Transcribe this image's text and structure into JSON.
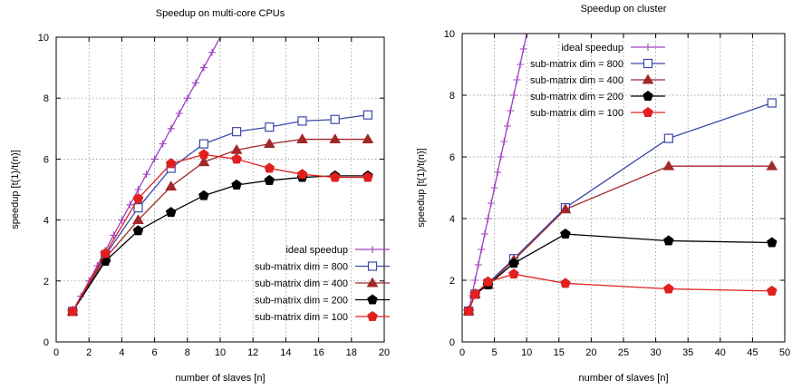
{
  "chart_data": [
    {
      "type": "line",
      "title": "Speedup on multi-core CPUs",
      "xlabel": "number of slaves [n]",
      "ylabel": "speedup [t(1)/t(n)]",
      "xlim": [
        0,
        20
      ],
      "ylim": [
        0,
        10
      ],
      "xticks": [
        0,
        2,
        4,
        6,
        8,
        10,
        12,
        14,
        16,
        18,
        20
      ],
      "yticks": [
        0,
        2,
        4,
        6,
        8,
        10
      ],
      "grid": true,
      "legend_position": "bottom-right",
      "series": [
        {
          "name": "ideal speedup",
          "color": "#a040c0",
          "marker": "plus",
          "x": [
            1,
            1.5,
            2,
            2.5,
            3,
            3.5,
            4,
            4.5,
            5,
            5.5,
            6,
            6.5,
            7,
            7.5,
            8,
            8.5,
            9,
            9.5,
            10
          ],
          "y": [
            1,
            1.5,
            2,
            2.5,
            3,
            3.5,
            4,
            4.5,
            5,
            5.5,
            6,
            6.5,
            7,
            7.5,
            8,
            8.5,
            9,
            9.5,
            10
          ]
        },
        {
          "name": "sub-matrix dim = 800",
          "color": "#3a4aa8",
          "marker": "square",
          "x": [
            1,
            3,
            5,
            7,
            9,
            11,
            13,
            15,
            17,
            19
          ],
          "y": [
            1.0,
            2.85,
            4.4,
            5.7,
            6.5,
            6.9,
            7.05,
            7.25,
            7.3,
            7.45
          ]
        },
        {
          "name": "sub-matrix dim = 400",
          "color": "#a02828",
          "marker": "triangle",
          "x": [
            1,
            3,
            5,
            7,
            9,
            11,
            13,
            15,
            17,
            19
          ],
          "y": [
            1.0,
            2.75,
            4.0,
            5.1,
            5.9,
            6.3,
            6.5,
            6.65,
            6.65,
            6.65
          ]
        },
        {
          "name": "sub-matrix dim = 200",
          "color": "#000000",
          "marker": "pentagon",
          "x": [
            1,
            3,
            5,
            7,
            9,
            11,
            13,
            15,
            17,
            19
          ],
          "y": [
            1.0,
            2.65,
            3.65,
            4.25,
            4.8,
            5.15,
            5.3,
            5.4,
            5.45,
            5.45
          ]
        },
        {
          "name": "sub-matrix dim = 100",
          "color": "#e02020",
          "marker": "pentagon",
          "x": [
            1,
            3,
            5,
            7,
            9,
            11,
            13,
            15,
            17,
            19
          ],
          "y": [
            1.0,
            2.9,
            4.7,
            5.85,
            6.15,
            6.0,
            5.7,
            5.5,
            5.4,
            5.4
          ]
        }
      ]
    },
    {
      "type": "line",
      "title": "Speedup on cluster",
      "xlabel": "number of slaves [n]",
      "ylabel": "speedup [t(1)/t(n)]",
      "xlim": [
        0,
        50
      ],
      "ylim": [
        0,
        10
      ],
      "xticks": [
        0,
        5,
        10,
        15,
        20,
        25,
        30,
        35,
        40,
        45,
        50
      ],
      "yticks": [
        0,
        2,
        4,
        6,
        8,
        10
      ],
      "grid": true,
      "legend_position": "top-right",
      "series": [
        {
          "name": "ideal speedup",
          "color": "#a040c0",
          "marker": "plus",
          "x": [
            1,
            1.5,
            2,
            2.5,
            3,
            3.5,
            4,
            4.5,
            5,
            5.5,
            6,
            6.5,
            7,
            7.5,
            8,
            8.5,
            9,
            9.5,
            10
          ],
          "y": [
            1,
            1.5,
            2,
            2.5,
            3,
            3.5,
            4,
            4.5,
            5,
            5.5,
            6,
            6.5,
            7,
            7.5,
            8,
            8.5,
            9,
            9.5,
            10
          ]
        },
        {
          "name": "sub-matrix dim = 800",
          "color": "#3a4aa8",
          "marker": "square",
          "x": [
            1,
            2,
            4,
            8,
            16,
            32,
            48
          ],
          "y": [
            1.0,
            1.55,
            1.9,
            2.7,
            4.35,
            6.6,
            7.75
          ]
        },
        {
          "name": "sub-matrix dim = 400",
          "color": "#a02828",
          "marker": "triangle",
          "x": [
            1,
            2,
            4,
            8,
            16,
            32,
            48
          ],
          "y": [
            1.0,
            1.55,
            1.85,
            2.65,
            4.3,
            5.7,
            5.7
          ]
        },
        {
          "name": "sub-matrix dim = 200",
          "color": "#000000",
          "marker": "pentagon",
          "x": [
            1,
            2,
            4,
            8,
            16,
            32,
            48
          ],
          "y": [
            1.0,
            1.55,
            1.85,
            2.55,
            3.5,
            3.28,
            3.22
          ]
        },
        {
          "name": "sub-matrix dim = 100",
          "color": "#e02020",
          "marker": "pentagon",
          "x": [
            1,
            2,
            4,
            8,
            16,
            32,
            48
          ],
          "y": [
            1.0,
            1.55,
            1.95,
            2.2,
            1.9,
            1.72,
            1.65
          ]
        }
      ]
    }
  ]
}
